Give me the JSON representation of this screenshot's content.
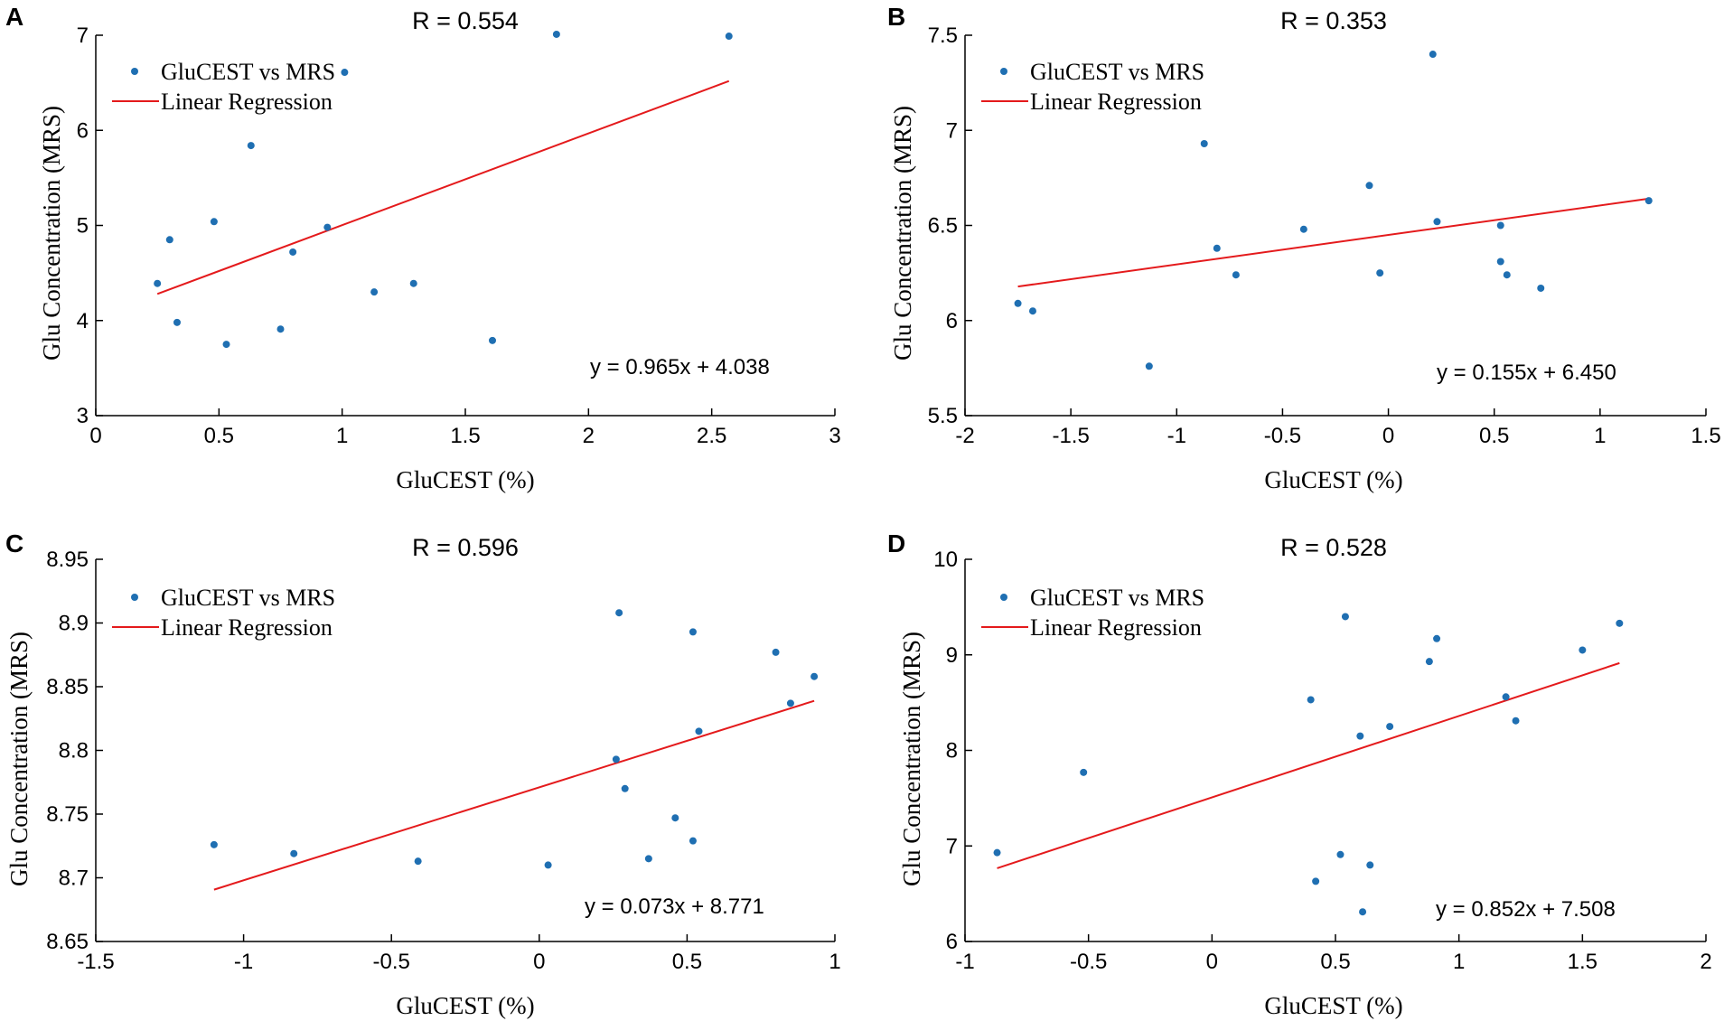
{
  "chart_data": [
    {
      "panel": "A",
      "type": "scatter",
      "title": "R = 0.554",
      "xlabel": "GluCEST (%)",
      "ylabel": "Glu Concentration (MRS)",
      "xlim": [
        0,
        3
      ],
      "ylim": [
        3,
        7
      ],
      "xticks": [
        0,
        0.5,
        1,
        1.5,
        2,
        2.5,
        3
      ],
      "xtick_labels": [
        "0",
        "0.5",
        "1",
        "1.5",
        "2",
        "2.5",
        "3"
      ],
      "yticks": [
        3,
        4,
        5,
        6,
        7
      ],
      "ytick_labels": [
        "3",
        "4",
        "5",
        "6",
        "7"
      ],
      "legend": [
        "GluCEST vs MRS",
        "Linear Regression"
      ],
      "legend_position": "top-left",
      "equation": "y = 0.965x + 4.038",
      "points": [
        [
          0.25,
          4.39
        ],
        [
          0.3,
          4.85
        ],
        [
          0.33,
          3.98
        ],
        [
          0.48,
          5.04
        ],
        [
          0.53,
          3.75
        ],
        [
          0.63,
          5.84
        ],
        [
          0.75,
          3.91
        ],
        [
          0.8,
          4.72
        ],
        [
          0.94,
          4.98
        ],
        [
          1.01,
          6.61
        ],
        [
          1.13,
          4.3
        ],
        [
          1.29,
          4.39
        ],
        [
          1.61,
          3.79
        ],
        [
          1.87,
          7.01
        ],
        [
          2.57,
          6.99
        ]
      ],
      "regression": {
        "x": [
          0.25,
          2.57
        ],
        "slope": 0.965,
        "intercept": 4.038
      }
    },
    {
      "panel": "B",
      "type": "scatter",
      "title": "R = 0.353",
      "xlabel": "GluCEST (%)",
      "ylabel": "Glu Concentration (MRS)",
      "xlim": [
        -2,
        1.5
      ],
      "ylim": [
        5.5,
        7.5
      ],
      "xticks": [
        -2,
        -1.5,
        -1,
        -0.5,
        0,
        0.5,
        1,
        1.5
      ],
      "xtick_labels": [
        "-2",
        "-1.5",
        "-1",
        "-0.5",
        "0",
        "0.5",
        "1",
        "1.5"
      ],
      "yticks": [
        5.5,
        6,
        6.5,
        7,
        7.5
      ],
      "ytick_labels": [
        "5.5",
        "6",
        "6.5",
        "7",
        "7.5"
      ],
      "legend": [
        "GluCEST vs MRS",
        "Linear Regression"
      ],
      "legend_position": "top-left",
      "equation": "y = 0.155x + 6.450",
      "points": [
        [
          -1.75,
          6.09
        ],
        [
          -1.68,
          6.05
        ],
        [
          -1.13,
          5.76
        ],
        [
          -0.87,
          6.93
        ],
        [
          -0.81,
          6.38
        ],
        [
          -0.72,
          6.24
        ],
        [
          -0.4,
          6.48
        ],
        [
          -0.09,
          6.71
        ],
        [
          -0.04,
          6.25
        ],
        [
          0.21,
          7.4
        ],
        [
          0.23,
          6.52
        ],
        [
          0.53,
          6.5
        ],
        [
          0.53,
          6.31
        ],
        [
          0.56,
          6.24
        ],
        [
          0.72,
          6.17
        ],
        [
          1.23,
          6.63
        ]
      ],
      "regression": {
        "x": [
          -1.75,
          1.23
        ],
        "slope": 0.155,
        "intercept": 6.45
      }
    },
    {
      "panel": "C",
      "type": "scatter",
      "title": "R = 0.596",
      "xlabel": "GluCEST (%)",
      "ylabel": "Glu Concentration (MRS)",
      "xlim": [
        -1.5,
        1
      ],
      "ylim": [
        8.65,
        8.95
      ],
      "xticks": [
        -1.5,
        -1,
        -0.5,
        0,
        0.5,
        1
      ],
      "xtick_labels": [
        "-1.5",
        "-1",
        "-0.5",
        "0",
        "0.5",
        "1"
      ],
      "yticks": [
        8.65,
        8.7,
        8.75,
        8.8,
        8.85,
        8.9,
        8.95
      ],
      "ytick_labels": [
        "8.65",
        "8.7",
        "8.75",
        "8.8",
        "8.85",
        "8.9",
        "8.95"
      ],
      "legend": [
        "GluCEST vs MRS",
        "Linear Regression"
      ],
      "legend_position": "top-left",
      "equation": "y = 0.073x + 8.771",
      "points": [
        [
          -1.1,
          8.726
        ],
        [
          -0.83,
          8.719
        ],
        [
          -0.41,
          8.713
        ],
        [
          0.03,
          8.71
        ],
        [
          0.26,
          8.793
        ],
        [
          0.27,
          8.908
        ],
        [
          0.29,
          8.77
        ],
        [
          0.37,
          8.715
        ],
        [
          0.46,
          8.747
        ],
        [
          0.52,
          8.893
        ],
        [
          0.52,
          8.729
        ],
        [
          0.54,
          8.815
        ],
        [
          0.8,
          8.877
        ],
        [
          0.85,
          8.837
        ],
        [
          0.93,
          8.858
        ]
      ],
      "regression": {
        "x": [
          -1.1,
          0.93
        ],
        "slope": 0.073,
        "intercept": 8.771
      }
    },
    {
      "panel": "D",
      "type": "scatter",
      "title": "R = 0.528",
      "xlabel": "GluCEST (%)",
      "ylabel": "Glu Concentration (MRS)",
      "xlim": [
        -1,
        2
      ],
      "ylim": [
        6,
        10
      ],
      "xticks": [
        -1,
        -0.5,
        0,
        0.5,
        1,
        1.5,
        2
      ],
      "xtick_labels": [
        "-1",
        "-0.5",
        "0",
        "0.5",
        "1",
        "1.5",
        "2"
      ],
      "yticks": [
        6,
        7,
        8,
        9,
        10
      ],
      "ytick_labels": [
        "6",
        "7",
        "8",
        "9",
        "10"
      ],
      "legend": [
        "GluCEST vs MRS",
        "Linear Regression"
      ],
      "legend_position": "top-left",
      "equation": "y = 0.852x + 7.508",
      "points": [
        [
          -0.87,
          6.93
        ],
        [
          -0.52,
          7.77
        ],
        [
          0.4,
          8.53
        ],
        [
          0.42,
          6.63
        ],
        [
          0.52,
          6.91
        ],
        [
          0.54,
          9.4
        ],
        [
          0.6,
          8.15
        ],
        [
          0.61,
          6.31
        ],
        [
          0.64,
          6.8
        ],
        [
          0.72,
          8.25
        ],
        [
          0.88,
          8.93
        ],
        [
          0.91,
          9.17
        ],
        [
          1.19,
          8.56
        ],
        [
          1.23,
          8.31
        ],
        [
          1.5,
          9.05
        ],
        [
          1.65,
          9.33
        ]
      ],
      "regression": {
        "x": [
          -0.87,
          1.65
        ],
        "slope": 0.852,
        "intercept": 7.508
      }
    }
  ],
  "style": {
    "point_color": "#1f6fb2",
    "line_color": "#e41a1c",
    "axis_color": "#000000"
  }
}
